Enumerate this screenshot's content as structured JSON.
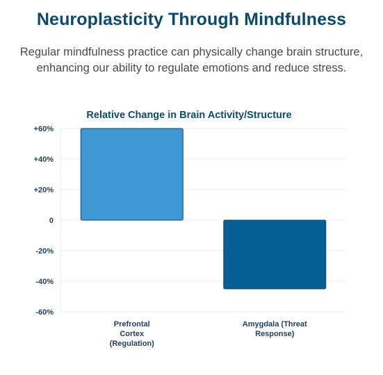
{
  "header": {
    "title": "Neuroplasticity Through Mindfulness",
    "subtitle_line1": "Regular mindfulness practice can physically change brain structure,",
    "subtitle_line2": "enhancing our ability to regulate emotions and reduce stress."
  },
  "colors": {
    "title": "#0b4a6f",
    "bar_positive": "#3f97d4",
    "bar_negative": "#085f96",
    "bar_stroke": "#0b4a6f",
    "axis_text": "#1f3d5a",
    "grid": "#ececec"
  },
  "chart_data": {
    "type": "bar",
    "title": "Relative Change in Brain Activity/Structure",
    "categories": [
      [
        "Prefrontal",
        "Cortex",
        "(Regulation)"
      ],
      [
        "Amygdala (Threat",
        "Response)"
      ]
    ],
    "values": [
      60,
      -45
    ],
    "ylim": [
      -60,
      60
    ],
    "yticks": [
      {
        "value": 60,
        "label": "+60%"
      },
      {
        "value": 40,
        "label": "+40%"
      },
      {
        "value": 20,
        "label": "+20%"
      },
      {
        "value": 0,
        "label": "0"
      },
      {
        "value": -20,
        "label": "-20%"
      },
      {
        "value": -40,
        "label": "-40%"
      },
      {
        "value": -60,
        "label": "-60%"
      }
    ],
    "grid": true,
    "legend": "none"
  }
}
